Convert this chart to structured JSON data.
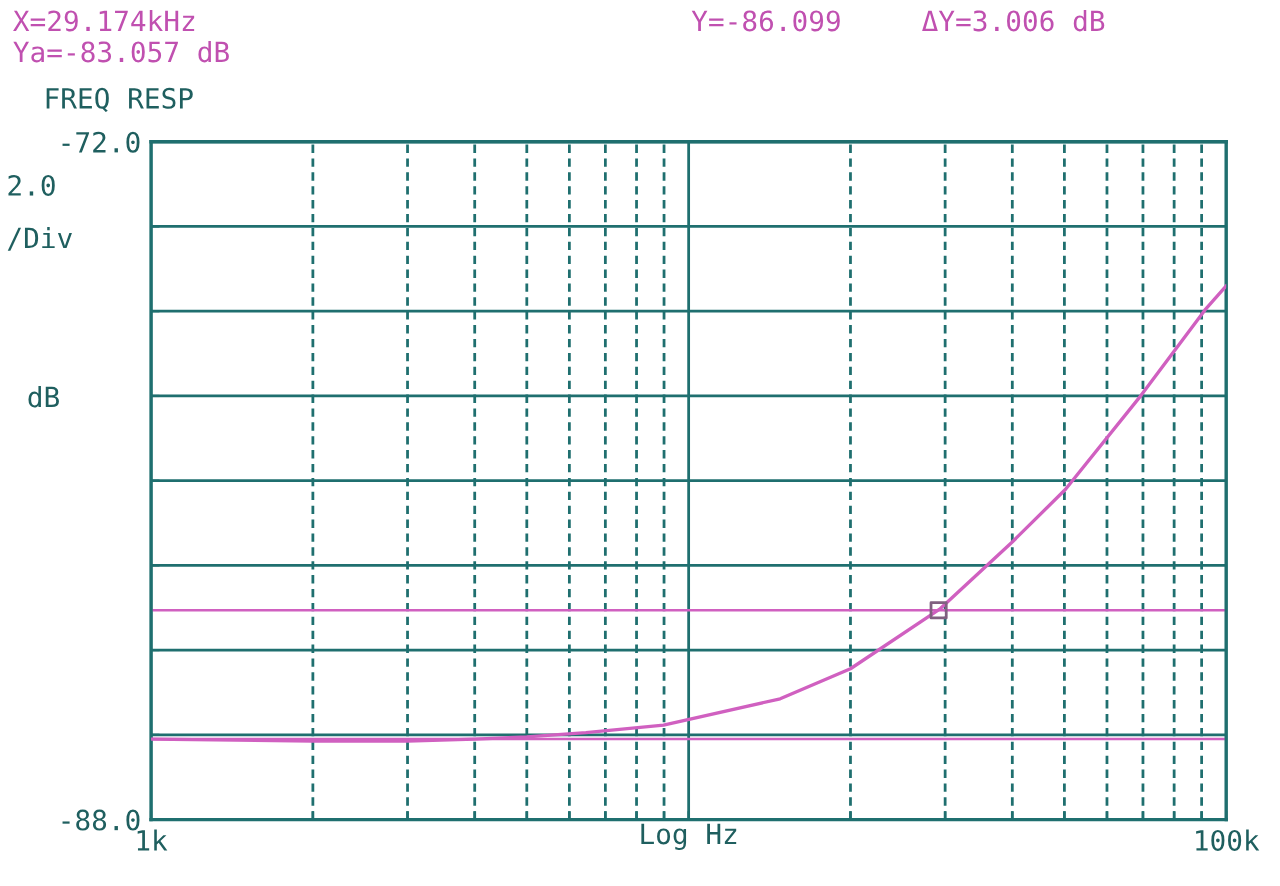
{
  "chart_data": {
    "type": "line",
    "title": "FREQ RESP",
    "xlabel": "Log Hz",
    "ylabel": "dB",
    "annotations": [
      "X=29.174kHz",
      "Ya=-83.057 dB",
      "Y=-86.099",
      "ΔY=3.006 dB",
      "2.0\n/Div"
    ],
    "log": "x",
    "grid": true,
    "line_style": "solid",
    "xlim": [
      1000,
      100000
    ],
    "ylim": [
      -88,
      -72
    ],
    "xticks": [
      {
        "value": 1000,
        "label": "1k"
      },
      {
        "value": 2000,
        "label": null
      },
      {
        "value": 3000,
        "label": null
      },
      {
        "value": 4000,
        "label": null
      },
      {
        "value": 5000,
        "label": null
      },
      {
        "value": 6000,
        "label": null
      },
      {
        "value": 7000,
        "label": null
      },
      {
        "value": 8000,
        "label": null
      },
      {
        "value": 9000,
        "label": null
      },
      {
        "value": 10000,
        "label": null
      },
      {
        "value": 20000,
        "label": null
      },
      {
        "value": 30000,
        "label": null
      },
      {
        "value": 40000,
        "label": null
      },
      {
        "value": 50000,
        "label": null
      },
      {
        "value": 60000,
        "label": null
      },
      {
        "value": 70000,
        "label": null
      },
      {
        "value": 80000,
        "label": null
      },
      {
        "value": 90000,
        "label": null
      },
      {
        "value": 100000,
        "label": "100k"
      }
    ],
    "yticks": [
      {
        "value": -72,
        "label": "-72.0"
      },
      {
        "value": -74,
        "label": null
      },
      {
        "value": -76,
        "label": null
      },
      {
        "value": -78,
        "label": null
      },
      {
        "value": -80,
        "label": null
      },
      {
        "value": -82,
        "label": null
      },
      {
        "value": -84,
        "label": null
      },
      {
        "value": -86,
        "label": null
      },
      {
        "value": -88,
        "label": "-88.0"
      }
    ],
    "ref_lines": [
      {
        "axis": "y",
        "value": -83.06,
        "color": "#d060c0"
      },
      {
        "axis": "y",
        "value": -86.1,
        "color": "#d060c0"
      }
    ],
    "series": [
      {
        "color": "#d060c0",
        "x": [
          1000,
          2000,
          3000,
          4000,
          5000,
          6440,
          8980,
          14800,
          20000,
          29400,
          39900,
          50200,
          69500,
          91300,
          100000
        ],
        "values": [
          -86.1,
          -86.15,
          -86.15,
          -86.1,
          -86.05,
          -85.95,
          -85.77,
          -85.15,
          -84.44,
          -83.02,
          -81.46,
          -80.21,
          -77.98,
          -75.97,
          -75.4
        ]
      },
      {
        "type": "scatter",
        "marker": "square",
        "color": "#806080",
        "x": [
          29174
        ],
        "values": [
          -83.06
        ]
      }
    ]
  }
}
